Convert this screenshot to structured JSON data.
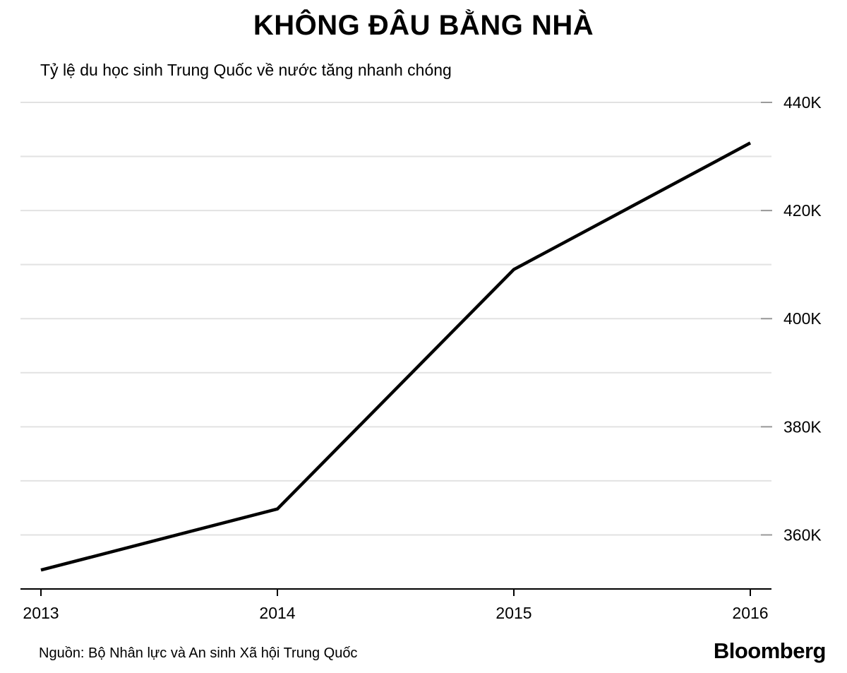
{
  "header": {
    "title": "KHÔNG ĐÂU BẰNG NHÀ",
    "subtitle": "Tỷ lệ du học sinh Trung Quốc về nước tăng nhanh chóng"
  },
  "chart_data": {
    "type": "line",
    "categories": [
      "2013",
      "2014",
      "2015",
      "2016"
    ],
    "series": [
      {
        "values_thousands": [
          353.5,
          364.8,
          409.1,
          432.5
        ]
      }
    ],
    "unit": "K",
    "ylim_thousands": [
      350,
      440
    ],
    "grid_step_thousands": 10,
    "yticks": [
      {
        "value": 360,
        "label": "360K"
      },
      {
        "value": 380,
        "label": "380K"
      },
      {
        "value": 400,
        "label": "400K"
      },
      {
        "value": 420,
        "label": "420K"
      },
      {
        "value": 440,
        "label": "440K"
      }
    ],
    "legend": "none",
    "grid": "horizontal",
    "colors": {
      "line": "#000000",
      "gridline": "#e2e2e2",
      "axis": "#000000",
      "ytick_mark": "#9a9a9a",
      "text": "#000000"
    }
  },
  "footer": {
    "source": "Nguồn: Bộ Nhân lực và An sinh Xã hội Trung Quốc",
    "brand": "Bloomberg"
  }
}
